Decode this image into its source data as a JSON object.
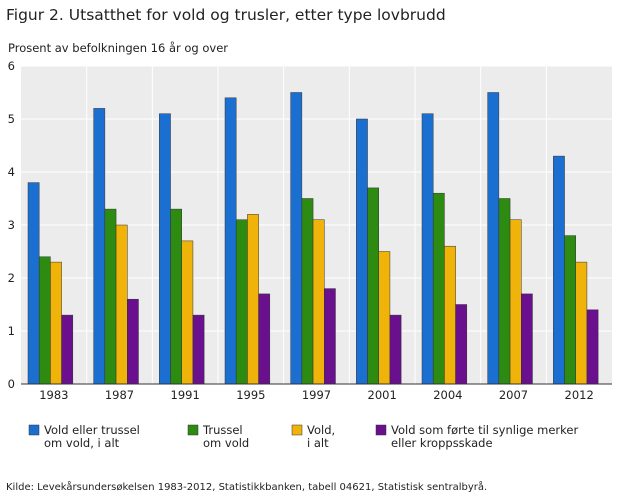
{
  "chart_data": {
    "type": "bar",
    "title": "Figur 2. Utsatthet for vold og trusler, etter type lovbrudd",
    "ylabel": "Prosent av befolkningen 16 år og over",
    "xlabel": "",
    "ylim": [
      0,
      6
    ],
    "yticks": [
      "0",
      "1",
      "2",
      "3",
      "4",
      "5",
      "6"
    ],
    "grid": true,
    "legend_position": "bottom",
    "categories": [
      "1983",
      "1987",
      "1991",
      "1995",
      "1997",
      "2001",
      "2004",
      "2007",
      "2012"
    ],
    "series": [
      {
        "name": "Vold eller trussel om vold, i alt",
        "legend_lines": [
          "Vold eller trussel",
          "om vold, i alt"
        ],
        "color": "#1a6fd1",
        "values": [
          3.8,
          5.2,
          5.1,
          5.4,
          5.5,
          5.0,
          5.1,
          5.5,
          4.3
        ]
      },
      {
        "name": "Trussel om vold",
        "legend_lines": [
          "Trussel",
          "om vold"
        ],
        "color": "#2e8b12",
        "values": [
          2.4,
          3.3,
          3.3,
          3.1,
          3.5,
          3.7,
          3.6,
          3.5,
          2.8
        ]
      },
      {
        "name": "Vold, i alt",
        "legend_lines": [
          "Vold,",
          "i alt"
        ],
        "color": "#f0b30a",
        "values": [
          2.3,
          3.0,
          2.7,
          3.2,
          3.1,
          2.5,
          2.6,
          3.1,
          2.3
        ]
      },
      {
        "name": "Vold som førte til synlige merker eller kroppsskade",
        "legend_lines": [
          "Vold som førte til synlige merker",
          "eller kroppsskade"
        ],
        "color": "#6a0f8e",
        "values": [
          1.3,
          1.6,
          1.3,
          1.7,
          1.8,
          1.3,
          1.5,
          1.7,
          1.4
        ]
      }
    ],
    "source": "Kilde: Levekårsundersøkelsen 1983-2012, Statistikkbanken, tabell 04621, Statistisk sentralbyrå."
  }
}
